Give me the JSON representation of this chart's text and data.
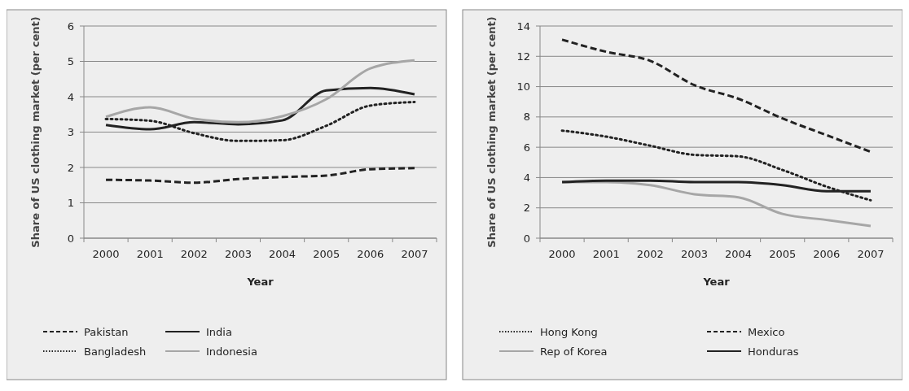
{
  "chart_data": [
    {
      "type": "line",
      "xlabel": "Year",
      "ylabel": "Share of US clothing market (per cent)",
      "categories": [
        "2000",
        "2001",
        "2002",
        "2003",
        "2004",
        "2005",
        "2006",
        "2007"
      ],
      "ylim": [
        0,
        6
      ],
      "yticks": [
        0,
        1,
        2,
        3,
        4,
        5,
        6
      ],
      "grid": "y",
      "legend": "bottom",
      "marker": "none",
      "series": [
        {
          "name": "Pakistan",
          "color": "#222222",
          "line_style": "dashed",
          "values": [
            1.65,
            1.63,
            1.57,
            1.67,
            1.73,
            1.77,
            1.95,
            1.98
          ]
        },
        {
          "name": "India",
          "color": "#222222",
          "line_style": "solid",
          "values": [
            3.2,
            3.08,
            3.28,
            3.22,
            3.33,
            4.18,
            4.25,
            4.07
          ]
        },
        {
          "name": "Bangladesh",
          "color": "#222222",
          "line_style": "dotted",
          "values": [
            3.37,
            3.32,
            2.97,
            2.75,
            2.77,
            3.18,
            3.75,
            3.85
          ]
        },
        {
          "name": "Indonesia",
          "color": "#a6a6a6",
          "line_style": "solid",
          "values": [
            3.43,
            3.7,
            3.38,
            3.28,
            3.45,
            3.93,
            4.8,
            5.03
          ]
        }
      ]
    },
    {
      "type": "line",
      "xlabel": "Year",
      "ylabel": "Share of US clothing market (per cent)",
      "categories": [
        "2000",
        "2001",
        "2002",
        "2003",
        "2004",
        "2005",
        "2006",
        "2007"
      ],
      "ylim": [
        0,
        14
      ],
      "yticks": [
        0,
        2,
        4,
        6,
        8,
        10,
        12,
        14
      ],
      "grid": "y",
      "legend": "bottom",
      "marker": "none",
      "series": [
        {
          "name": "Hong Kong",
          "color": "#222222",
          "line_style": "dotted",
          "values": [
            7.1,
            6.7,
            6.1,
            5.5,
            5.4,
            4.5,
            3.4,
            2.5
          ]
        },
        {
          "name": "Mexico",
          "color": "#222222",
          "line_style": "dashed",
          "values": [
            13.1,
            12.3,
            11.7,
            10.1,
            9.2,
            7.9,
            6.8,
            5.7
          ]
        },
        {
          "name": "Rep of Korea",
          "color": "#a6a6a6",
          "line_style": "solid",
          "values": [
            3.7,
            3.7,
            3.5,
            2.9,
            2.7,
            1.6,
            1.2,
            0.8
          ]
        },
        {
          "name": "Honduras",
          "color": "#222222",
          "line_style": "solid",
          "values": [
            3.7,
            3.8,
            3.8,
            3.7,
            3.7,
            3.5,
            3.1,
            3.1
          ]
        }
      ]
    }
  ]
}
